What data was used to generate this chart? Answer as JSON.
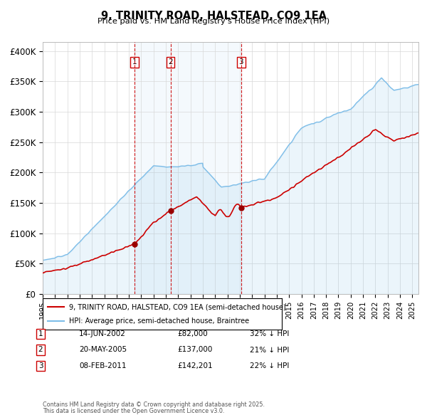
{
  "title": "9, TRINITY ROAD, HALSTEAD, CO9 1EA",
  "subtitle": "Price paid vs. HM Land Registry's House Price Index (HPI)",
  "ylabel_ticks": [
    "£0",
    "£50K",
    "£100K",
    "£150K",
    "£200K",
    "£250K",
    "£300K",
    "£350K",
    "£400K"
  ],
  "ytick_values": [
    0,
    50000,
    100000,
    150000,
    200000,
    250000,
    300000,
    350000,
    400000
  ],
  "ylim": [
    0,
    415000
  ],
  "xlim_start": 1995.0,
  "xlim_end": 2025.5,
  "hpi_color": "#7dbde8",
  "hpi_fill_color": "#ddeeff",
  "price_color": "#cc0000",
  "vline_color": "#cc0000",
  "background_color": "#ffffff",
  "grid_color": "#d8d8d8",
  "sales": [
    {
      "date_year": 2002.45,
      "price": 82000,
      "label": "1",
      "date_str": "14-JUN-2002",
      "price_str": "£82,000",
      "pct_str": "32% ↓ HPI"
    },
    {
      "date_year": 2005.37,
      "price": 137000,
      "label": "2",
      "date_str": "20-MAY-2005",
      "price_str": "£137,000",
      "pct_str": "21% ↓ HPI"
    },
    {
      "date_year": 2011.1,
      "price": 142201,
      "label": "3",
      "date_str": "08-FEB-2011",
      "price_str": "£142,201",
      "pct_str": "22% ↓ HPI"
    }
  ],
  "legend_line1": "9, TRINITY ROAD, HALSTEAD, CO9 1EA (semi-detached house)",
  "legend_line2": "HPI: Average price, semi-detached house, Braintree",
  "footer1": "Contains HM Land Registry data © Crown copyright and database right 2025.",
  "footer2": "This data is licensed under the Open Government Licence v3.0."
}
